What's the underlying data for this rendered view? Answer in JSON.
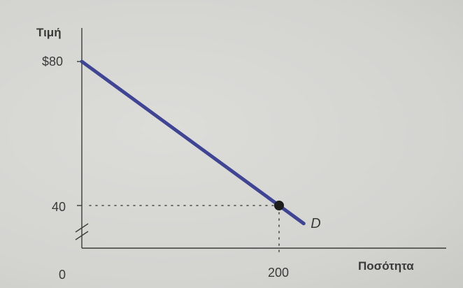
{
  "chart_data": {
    "type": "line",
    "xlabel": "Ποσότητα",
    "ylabel": "Τιμή",
    "origin_label": "0",
    "y_ticks": [
      "$80",
      "40"
    ],
    "x_ticks": [
      "200"
    ],
    "series": [
      {
        "name": "D",
        "points": [
          {
            "x": 0,
            "y": 80
          },
          {
            "x": 200,
            "y": 40
          },
          {
            "x": 225,
            "y": 35
          }
        ]
      }
    ],
    "marked_point": {
      "x": 200,
      "y": 40
    },
    "axis_break": "y",
    "grid": false,
    "colors": {
      "line": "#3f4592",
      "point": "#1c1c1c"
    }
  }
}
